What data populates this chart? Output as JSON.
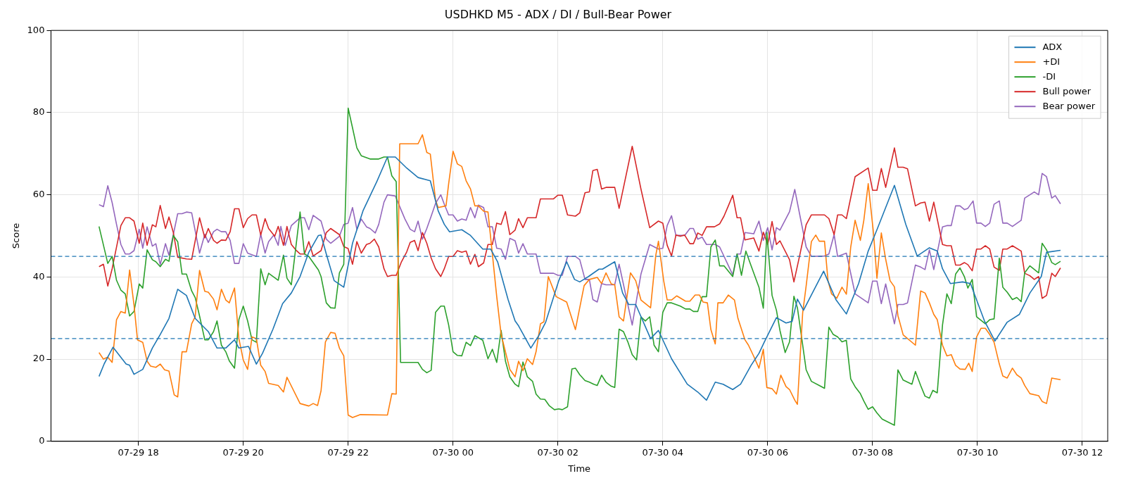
{
  "chart_data": {
    "type": "line",
    "title": "USDHKD M5 - ADX / DI / Bull-Bear Power",
    "xlabel": "Time",
    "ylabel": "Score",
    "xlim": [
      "--07-29T16:20",
      "--07-30T12:29"
    ],
    "ylim": [
      0,
      100
    ],
    "xticks": [
      {
        "value": "--07-29T18:00",
        "label": "07-29 18"
      },
      {
        "value": "--07-29T20:00",
        "label": "07-29 20"
      },
      {
        "value": "--07-29T22:00",
        "label": "07-29 22"
      },
      {
        "value": "--07-30T00:00",
        "label": "07-30 00"
      },
      {
        "value": "--07-30T02:00",
        "label": "07-30 02"
      },
      {
        "value": "--07-30T04:00",
        "label": "07-30 04"
      },
      {
        "value": "--07-30T06:00",
        "label": "07-30 06"
      },
      {
        "value": "--07-30T08:00",
        "label": "07-30 08"
      },
      {
        "value": "--07-30T10:00",
        "label": "07-30 10"
      },
      {
        "value": "--07-30T12:00",
        "label": "07-30 12"
      }
    ],
    "yticks": [
      0,
      20,
      40,
      60,
      80,
      100
    ],
    "grid": true,
    "legend": "top right",
    "ref_lines": [
      {
        "axis": "y",
        "value": 45,
        "color": "#1f77b4",
        "line_style": "dashed"
      },
      {
        "axis": "y",
        "value": 25,
        "color": "#1f77b4",
        "line_style": "dashed"
      }
    ],
    "series": [
      {
        "name": "ADX",
        "color": "#1f77b4",
        "x": [
          "--07-29T17:15",
          "--07-29T17:21",
          "--07-29T17:31",
          "--07-29T17:35",
          "--07-29T17:46",
          "--07-29T17:50",
          "--07-29T17:55",
          "--07-29T18:05",
          "--07-29T18:16",
          "--07-29T18:25",
          "--07-29T18:35",
          "--07-29T18:45",
          "--07-29T18:55",
          "--07-29T19:05",
          "--07-29T19:20",
          "--07-29T19:30",
          "--07-29T19:40",
          "--07-29T19:50",
          "--07-29T19:55",
          "--07-29T20:06",
          "--07-29T20:15",
          "--07-29T20:22",
          "--07-29T20:34",
          "--07-29T20:45",
          "--07-29T20:55",
          "--07-29T21:05",
          "--07-29T21:15",
          "--07-29T21:26",
          "--07-29T21:29",
          "--07-29T21:35",
          "--07-29T21:44",
          "--07-29T21:55",
          "--07-29T22:05",
          "--07-29T22:17",
          "--07-29T22:33",
          "--07-29T22:45",
          "--07-29T22:54",
          "--07-29T23:07",
          "--07-29T23:20",
          "--07-29T23:34",
          "--07-29T23:43",
          "--07-29T23:50",
          "--07-29T23:56",
          "--07-30T00:10",
          "--07-30T00:20",
          "--07-30T00:34",
          "--07-30T00:43",
          "--07-30T00:51",
          "--07-30T01:03",
          "--07-30T01:11",
          "--07-30T01:15",
          "--07-30T01:29",
          "--07-30T01:38",
          "--07-30T01:46",
          "--07-30T02:01",
          "--07-30T02:10",
          "--07-30T02:19",
          "--07-30T02:25",
          "--07-30T02:35",
          "--07-30T02:47",
          "--07-30T02:51",
          "--07-30T03:05",
          "--07-30T03:14",
          "--07-30T03:21",
          "--07-30T03:29",
          "--07-30T03:46",
          "--07-30T03:55",
          "--07-30T04:10",
          "--07-30T04:28",
          "--07-30T04:40",
          "--07-30T04:50",
          "--07-30T05:00",
          "--07-30T05:09",
          "--07-30T05:20",
          "--07-30T05:29",
          "--07-30T05:41",
          "--07-30T05:50",
          "--07-30T05:56",
          "--07-30T06:10",
          "--07-30T06:21",
          "--07-30T06:28",
          "--07-30T06:34",
          "--07-30T06:41",
          "--07-30T07:04",
          "--07-30T07:18",
          "--07-30T07:30",
          "--07-30T07:44",
          "--07-30T07:55",
          "--07-30T08:05",
          "--07-30T08:25",
          "--07-30T08:38",
          "--07-30T08:51",
          "--07-30T09:05",
          "--07-30T09:14",
          "--07-30T09:20",
          "--07-30T09:29",
          "--07-30T09:43",
          "--07-30T09:52",
          "--07-30T10:08",
          "--07-30T10:20",
          "--07-30T10:34",
          "--07-30T10:48",
          "--07-30T11:00",
          "--07-30T11:13",
          "--07-30T11:19",
          "--07-30T11:35"
        ],
        "values": [
          15.8,
          18.9,
          22.9,
          21.8,
          18.8,
          18.5,
          16.3,
          17.5,
          22.7,
          26,
          29.9,
          37,
          35.5,
          29.9,
          26.7,
          22.7,
          22.7,
          24.7,
          22.7,
          23.1,
          18.8,
          21.4,
          27.3,
          33.5,
          36.1,
          40.1,
          46,
          50.1,
          50.2,
          45.6,
          39.1,
          37.5,
          48.2,
          56.1,
          63.3,
          69.2,
          69.2,
          66.5,
          64.2,
          63.4,
          56.1,
          52.8,
          51,
          51.5,
          50.1,
          46.8,
          46.8,
          43.7,
          34.5,
          29.3,
          28.1,
          22.7,
          25.7,
          29,
          39.1,
          43.7,
          39.4,
          38.8,
          40.1,
          41.9,
          41.9,
          43.7,
          36.1,
          33.3,
          33.3,
          25,
          27,
          20.1,
          13.9,
          12,
          10,
          14.4,
          13.9,
          12.6,
          13.9,
          18.5,
          21.4,
          24.1,
          30.1,
          28.8,
          29.2,
          34.6,
          31.9,
          41.4,
          34.5,
          31,
          38.4,
          46.3,
          51.5,
          62.3,
          52.8,
          45.1,
          47.1,
          46.3,
          42,
          38.4,
          38.8,
          38.4,
          29.3,
          24.4,
          29,
          30.9,
          36.1,
          40.1,
          46,
          46.5
        ]
      },
      {
        "name": "+DI",
        "color": "#ff7f0e",
        "x": [
          "--07-29T17:15",
          "--07-29T17:20",
          "--07-29T17:25",
          "--07-29T17:30",
          "--07-29T17:35",
          "--07-29T17:40",
          "--07-29T17:45",
          "--07-29T17:50",
          "--07-29T17:55",
          "--07-29T17:59",
          "--07-29T18:05",
          "--07-29T18:10",
          "--07-29T18:14",
          "--07-29T18:20",
          "--07-29T18:25",
          "--07-29T18:30",
          "--07-29T18:35",
          "--07-29T18:41",
          "--07-29T18:45",
          "--07-29T18:50",
          "--07-29T18:55",
          "--07-29T19:01",
          "--07-29T19:05",
          "--07-29T19:10",
          "--07-29T19:16",
          "--07-29T19:20",
          "--07-29T19:26",
          "--07-29T19:30",
          "--07-29T19:35",
          "--07-29T19:40",
          "--07-29T19:44",
          "--07-29T19:50",
          "--07-29T19:55",
          "--07-29T20:00",
          "--07-29T20:05",
          "--07-29T20:10",
          "--07-29T20:15",
          "--07-29T20:20",
          "--07-29T20:25",
          "--07-29T20:29",
          "--07-29T20:40",
          "--07-29T20:46",
          "--07-29T20:50",
          "--07-29T21:05",
          "--07-29T21:15",
          "--07-29T21:20",
          "--07-29T21:25",
          "--07-29T21:29",
          "--07-29T21:34",
          "--07-29T21:40",
          "--07-29T21:45",
          "--07-29T21:50",
          "--07-29T21:55",
          "--07-29T22:00",
          "--07-29T22:05",
          "--07-29T22:14",
          "--07-29T22:45",
          "--07-29T22:50",
          "--07-29T22:55",
          "--07-29T22:59",
          "--07-29T23:20",
          "--07-29T23:25",
          "--07-29T23:30",
          "--07-29T23:34",
          "--07-29T23:40",
          "--07-29T23:43",
          "--07-29T23:52",
          "--07-29T23:55",
          "--07-30T00:00",
          "--07-30T00:05",
          "--07-30T00:10",
          "--07-30T00:15",
          "--07-30T00:20",
          "--07-30T00:25",
          "--07-30T00:29",
          "--07-30T00:35",
          "--07-30T00:40",
          "--07-30T00:45",
          "--07-30T00:50",
          "--07-30T00:55",
          "--07-30T01:05",
          "--07-30T01:11",
          "--07-30T01:15",
          "--07-30T01:20",
          "--07-30T01:25",
          "--07-30T01:31",
          "--07-30T01:35",
          "--07-30T01:40",
          "--07-30T01:44",
          "--07-30T01:49",
          "--07-30T01:58",
          "--07-30T02:10",
          "--07-30T02:20",
          "--07-30T02:30",
          "--07-30T02:36",
          "--07-30T02:45",
          "--07-30T02:50",
          "--07-30T02:55",
          "--07-30T03:01",
          "--07-30T03:05",
          "--07-30T03:10",
          "--07-30T03:15",
          "--07-30T03:23",
          "--07-30T03:29",
          "--07-30T03:35",
          "--07-30T03:46",
          "--07-30T03:52",
          "--07-30T03:55",
          "--07-30T04:01",
          "--07-30T04:05",
          "--07-30T04:10",
          "--07-30T04:16",
          "--07-30T04:26",
          "--07-30T04:31",
          "--07-30T04:37",
          "--07-30T04:42",
          "--07-30T04:46",
          "--07-30T04:51",
          "--07-30T04:55",
          "--07-30T05:00",
          "--07-30T05:03",
          "--07-30T05:09",
          "--07-30T05:15",
          "--07-30T05:22",
          "--07-30T05:26",
          "--07-30T05:34",
          "--07-30T05:38",
          "--07-30T05:44",
          "--07-30T05:50",
          "--07-30T05:55",
          "--07-30T05:59",
          "--07-30T06:05",
          "--07-30T06:10",
          "--07-30T06:15",
          "--07-30T06:21",
          "--07-30T06:25",
          "--07-30T06:31",
          "--07-30T06:34",
          "--07-30T06:40",
          "--07-30T06:44",
          "--07-30T06:50",
          "--07-30T06:55",
          "--07-30T06:59",
          "--07-30T07:05",
          "--07-30T07:09",
          "--07-30T07:13",
          "--07-30T07:19",
          "--07-30T07:25",
          "--07-30T07:30",
          "--07-30T07:35",
          "--07-30T07:40",
          "--07-30T07:46",
          "--07-30T07:50",
          "--07-30T07:55",
          "--07-30T08:01",
          "--07-30T08:05",
          "--07-30T08:10",
          "--07-30T08:15",
          "--07-30T08:20",
          "--07-30T08:25",
          "--07-30T08:29",
          "--07-30T08:35",
          "--07-30T08:49",
          "--07-30T08:55",
          "--07-30T09:00",
          "--07-30T09:05",
          "--07-30T09:10",
          "--07-30T09:14",
          "--07-30T09:20",
          "--07-30T09:25",
          "--07-30T09:30",
          "--07-30T09:35",
          "--07-30T09:40",
          "--07-30T09:46",
          "--07-30T09:50",
          "--07-30T09:54",
          "--07-30T09:59",
          "--07-30T10:04",
          "--07-30T10:09",
          "--07-30T10:14",
          "--07-30T10:19",
          "--07-30T10:25",
          "--07-30T10:29",
          "--07-30T10:34",
          "--07-30T10:40",
          "--07-30T10:45",
          "--07-30T10:50",
          "--07-30T10:54",
          "--07-30T11:00",
          "--07-30T11:10",
          "--07-30T11:14",
          "--07-30T11:19",
          "--07-30T11:25",
          "--07-30T11:35"
        ],
        "values": [
          21.6,
          20,
          20.5,
          19.2,
          29.6,
          31.6,
          31.2,
          41.7,
          33.2,
          24.7,
          24.1,
          19.5,
          18.3,
          18,
          18.8,
          17.4,
          17.1,
          11.3,
          10.8,
          21.8,
          21.8,
          28.6,
          30.3,
          41.6,
          36.5,
          36.3,
          34.6,
          32,
          37,
          34.4,
          33.7,
          37.3,
          25,
          19.8,
          17.5,
          25.4,
          25,
          18.5,
          17,
          14.1,
          13.6,
          12,
          15.6,
          9.2,
          8.6,
          9.2,
          8.7,
          12.3,
          24.2,
          26.5,
          26.3,
          22.7,
          20.8,
          6.4,
          5.8,
          6.5,
          6.4,
          11.6,
          11.5,
          72.4,
          72.4,
          74.6,
          70.3,
          69.9,
          58.7,
          56.9,
          57.3,
          62.7,
          70.6,
          67.5,
          66.9,
          63.4,
          61.4,
          57.3,
          57.3,
          56,
          55.8,
          45.6,
          35.2,
          26,
          17.5,
          15.7,
          19.5,
          17.2,
          20.1,
          18.7,
          21.8,
          28.6,
          29.1,
          40.1,
          35.2,
          33.9,
          27.2,
          37.9,
          39.4,
          39.9,
          38.4,
          41,
          38.3,
          38.1,
          30.3,
          29.3,
          41,
          39.1,
          34.4,
          32.5,
          45.3,
          48.7,
          39.1,
          34.4,
          34.4,
          35.4,
          34.1,
          34.1,
          35.6,
          35.6,
          33.9,
          33.7,
          27.2,
          23.7,
          33.7,
          33.7,
          35.6,
          34.4,
          29.9,
          24.7,
          23.4,
          20.7,
          17.8,
          22.4,
          13.1,
          12.8,
          11.5,
          16.1,
          13.3,
          12.6,
          10,
          9,
          31.2,
          37.8,
          48.6,
          50.2,
          48.7,
          48.7,
          39.1,
          35.9,
          34.8,
          37.5,
          35.8,
          47.3,
          53.8,
          48.9,
          53.8,
          62.7,
          50.8,
          39.7,
          50.7,
          44.3,
          39.1,
          37.6,
          30.6,
          25.9,
          23.4,
          36.6,
          36.1,
          33.7,
          30.9,
          29.6,
          23.4,
          20.8,
          21.1,
          18.5,
          17.6,
          17.5,
          19,
          17,
          25.4,
          27.5,
          27.5,
          26,
          24.1,
          18.8,
          15.9,
          15.4,
          17.8,
          16.2,
          15.4,
          13.6,
          11.6,
          11.1,
          9.7,
          9.2,
          15.4,
          15
        ]
      },
      {
        "name": "-DI",
        "color": "#2ca02c",
        "x": [
          "--07-29T17:15",
          "--07-29T17:25",
          "--07-29T17:30",
          "--07-29T17:35",
          "--07-29T17:40",
          "--07-29T17:45",
          "--07-29T17:50",
          "--07-29T17:55",
          "--07-29T18:01",
          "--07-29T18:05",
          "--07-29T18:10",
          "--07-29T18:16",
          "--07-29T18:20",
          "--07-29T18:25",
          "--07-29T18:31",
          "--07-29T18:35",
          "--07-29T18:40",
          "--07-29T18:45",
          "--07-29T18:50",
          "--07-29T18:55",
          "--07-29T19:01",
          "--07-29T19:05",
          "--07-29T19:10",
          "--07-29T19:16",
          "--07-29T19:20",
          "--07-29T19:26",
          "--07-29T19:30",
          "--07-29T19:35",
          "--07-29T19:40",
          "--07-29T19:44",
          "--07-29T19:50",
          "--07-29T19:55",
          "--07-29T20:00",
          "--07-29T20:05",
          "--07-29T20:10",
          "--07-29T20:15",
          "--07-29T20:20",
          "--07-29T20:25",
          "--07-29T20:29",
          "--07-29T20:40",
          "--07-29T20:46",
          "--07-29T20:50",
          "--07-29T20:55",
          "--07-29T21:05",
          "--07-29T21:10",
          "--07-29T21:15",
          "--07-29T21:26",
          "--07-29T21:29",
          "--07-29T21:35",
          "--07-29T21:40",
          "--07-29T21:45",
          "--07-29T21:50",
          "--07-29T21:55",
          "--07-29T22:00",
          "--07-29T22:05",
          "--07-29T22:10",
          "--07-29T22:15",
          "--07-29T22:25",
          "--07-29T22:35",
          "--07-29T22:41",
          "--07-29T22:45",
          "--07-29T22:50",
          "--07-29T22:55",
          "--07-29T23:00",
          "--07-29T23:20",
          "--07-29T23:25",
          "--07-29T23:30",
          "--07-29T23:35",
          "--07-29T23:40",
          "--07-29T23:46",
          "--07-29T23:50",
          "--07-29T23:55",
          "--07-30T00:00",
          "--07-30T00:05",
          "--07-30T00:10",
          "--07-30T00:15",
          "--07-30T00:20",
          "--07-30T00:25",
          "--07-30T00:34",
          "--07-30T00:40",
          "--07-30T00:45",
          "--07-30T00:50",
          "--07-30T00:55",
          "--07-30T01:00",
          "--07-30T01:05",
          "--07-30T01:11",
          "--07-30T01:15",
          "--07-30T01:20",
          "--07-30T01:25",
          "--07-30T01:31",
          "--07-30T01:35",
          "--07-30T01:40",
          "--07-30T01:45",
          "--07-30T01:50",
          "--07-30T01:56",
          "--07-30T02:01",
          "--07-30T02:05",
          "--07-30T02:11",
          "--07-30T02:16",
          "--07-30T02:20",
          "--07-30T02:25",
          "--07-30T02:31",
          "--07-30T02:36",
          "--07-30T02:41",
          "--07-30T02:45",
          "--07-30T02:50",
          "--07-30T02:55",
          "--07-30T03:01",
          "--07-30T03:05",
          "--07-30T03:10",
          "--07-30T03:15",
          "--07-30T03:20",
          "--07-30T03:25",
          "--07-30T03:30",
          "--07-30T03:35",
          "--07-30T03:40",
          "--07-30T03:45",
          "--07-30T03:50",
          "--07-30T03:55",
          "--07-30T04:00",
          "--07-30T04:05",
          "--07-30T04:10",
          "--07-30T04:20",
          "--07-30T04:26",
          "--07-30T04:31",
          "--07-30T04:35",
          "--07-30T04:40",
          "--07-30T04:45",
          "--07-30T04:50",
          "--07-30T04:55",
          "--07-30T05:00",
          "--07-30T05:05",
          "--07-30T05:10",
          "--07-30T05:20",
          "--07-30T05:25",
          "--07-30T05:30",
          "--07-30T05:35",
          "--07-30T05:40",
          "--07-30T05:50",
          "--07-30T05:55",
          "--07-30T05:59",
          "--07-30T06:05",
          "--07-30T06:10",
          "--07-30T06:14",
          "--07-30T06:20",
          "--07-30T06:25",
          "--07-30T06:30",
          "--07-30T06:34",
          "--07-30T06:39",
          "--07-30T06:44",
          "--07-30T06:50",
          "--07-30T06:59",
          "--07-30T07:05",
          "--07-30T07:10",
          "--07-30T07:15",
          "--07-30T07:20",
          "--07-30T07:25",
          "--07-30T07:30",
          "--07-30T07:35",
          "--07-30T07:40",
          "--07-30T07:46",
          "--07-30T07:50",
          "--07-30T07:55",
          "--07-30T08:00",
          "--07-30T08:05",
          "--07-30T08:11",
          "--07-30T08:25",
          "--07-30T08:29",
          "--07-30T08:35",
          "--07-30T08:45",
          "--07-30T08:49",
          "--07-30T08:55",
          "--07-30T09:00",
          "--07-30T09:05",
          "--07-30T09:09",
          "--07-30T09:14",
          "--07-30T09:20",
          "--07-30T09:25",
          "--07-30T09:30",
          "--07-30T09:35",
          "--07-30T09:40",
          "--07-30T09:45",
          "--07-30T09:49",
          "--07-30T09:54",
          "--07-30T09:59",
          "--07-30T10:09",
          "--07-30T10:14",
          "--07-30T10:19",
          "--07-30T10:25",
          "--07-30T10:29",
          "--07-30T10:34",
          "--07-30T10:40",
          "--07-30T10:45",
          "--07-30T10:50",
          "--07-30T10:54",
          "--07-30T11:00",
          "--07-30T11:10",
          "--07-30T11:14",
          "--07-30T11:19",
          "--07-30T11:25",
          "--07-30T11:29",
          "--07-30T11:35"
        ],
        "values": [
          52.3,
          43.3,
          45,
          39.2,
          36.8,
          35.9,
          30.5,
          31.6,
          38.3,
          37.3,
          46.6,
          44.2,
          43.7,
          42.5,
          44.3,
          43.8,
          50.1,
          48.6,
          40.7,
          40.7,
          36.6,
          35,
          30.5,
          24.7,
          24.7,
          26.7,
          29.3,
          23.4,
          21.8,
          19.6,
          17.8,
          29.6,
          32.9,
          29.3,
          24.7,
          24.1,
          42,
          38.1,
          40.9,
          39.2,
          45.3,
          39.7,
          38.1,
          55.8,
          45.6,
          45,
          41.7,
          40.1,
          33.7,
          32.5,
          32.4,
          41,
          43.1,
          81.1,
          76.3,
          71.4,
          69.5,
          68.7,
          68.7,
          69.2,
          69.2,
          64.6,
          63.2,
          19.2,
          19.2,
          17.5,
          16.7,
          17.3,
          31.4,
          32.9,
          32.9,
          28.3,
          21.8,
          20.9,
          20.8,
          24.1,
          23.3,
          25.7,
          24.6,
          20.1,
          22.4,
          19.2,
          27,
          19.5,
          15.7,
          13.9,
          13.3,
          19.3,
          15.7,
          14.6,
          11.5,
          10.3,
          10.2,
          8.7,
          7.7,
          7.9,
          7.7,
          8.4,
          17.6,
          17.8,
          16.2,
          14.8,
          14.4,
          13.9,
          13.6,
          16.1,
          14.4,
          13.4,
          13.1,
          27.3,
          26.7,
          24.2,
          21.1,
          19.8,
          30.3,
          29.3,
          30.3,
          23.4,
          21.8,
          31.4,
          33.7,
          33.7,
          32.9,
          32.2,
          32.2,
          31.6,
          31.6,
          35.2,
          35.2,
          47.3,
          49,
          42.7,
          42.7,
          40.1,
          45.6,
          40.4,
          46.3,
          43.3,
          37.5,
          32.4,
          50.8,
          35.5,
          31.9,
          27,
          21.6,
          24.2,
          35.3,
          32.5,
          25,
          17.4,
          14.6,
          13.6,
          12.9,
          27.8,
          26,
          25.4,
          24.2,
          24.6,
          15.2,
          13.3,
          11.6,
          9.8,
          7.8,
          8.4,
          6.9,
          5.4,
          3.9,
          17.4,
          14.9,
          13.9,
          17,
          13.6,
          11,
          10.5,
          12.4,
          11.8,
          28.3,
          35.9,
          33.5,
          40.7,
          42.2,
          40.1,
          37.3,
          39.4,
          30.3,
          28.6,
          29.6,
          29.8,
          44.6,
          37.5,
          36.3,
          34.5,
          35,
          34,
          41,
          42.7,
          41,
          48.2,
          46.6,
          43.5,
          43,
          43.8
        ]
      },
      {
        "name": "Bull power",
        "color": "#d62728",
        "x": [
          "--07-29T17:15",
          "--07-29T17:20",
          "--07-29T17:25",
          "--07-29T17:30",
          "--07-29T17:40",
          "--07-29T17:45",
          "--07-29T17:50",
          "--07-29T17:55",
          "--07-29T18:01",
          "--07-29T18:05",
          "--07-29T18:10",
          "--07-29T18:16",
          "--07-29T18:20",
          "--07-29T18:25",
          "--07-29T18:31",
          "--07-29T18:35",
          "--07-29T18:40",
          "--07-29T18:45",
          "--07-29T18:55",
          "--07-29T19:01",
          "--07-29T19:10",
          "--07-29T19:16",
          "--07-29T19:20",
          "--07-29T19:26",
          "--07-29T19:30",
          "--07-29T19:35",
          "--07-29T19:40",
          "--07-29T19:45",
          "--07-29T19:50",
          "--07-29T19:55",
          "--07-29T20:00",
          "--07-29T20:05",
          "--07-29T20:10",
          "--07-29T20:15",
          "--07-29T20:20",
          "--07-29T20:25",
          "--07-29T20:29",
          "--07-29T20:36",
          "--07-29T20:40",
          "--07-29T20:46",
          "--07-29T20:50",
          "--07-29T20:55",
          "--07-29T21:00",
          "--07-29T21:05",
          "--07-29T21:10",
          "--07-29T21:15",
          "--07-29T21:20",
          "--07-29T21:29",
          "--07-29T21:35",
          "--07-29T21:40",
          "--07-29T21:50",
          "--07-29T21:55",
          "--07-29T22:00",
          "--07-29T22:05",
          "--07-29T22:10",
          "--07-29T22:15",
          "--07-29T22:21",
          "--07-29T22:25",
          "--07-29T22:30",
          "--07-29T22:35",
          "--07-29T22:41",
          "--07-29T22:45",
          "--07-29T22:50",
          "--07-29T22:55",
          "--07-29T23:01",
          "--07-29T23:07",
          "--07-29T23:11",
          "--07-29T23:16",
          "--07-29T23:20",
          "--07-29T23:25",
          "--07-29T23:30",
          "--07-29T23:35",
          "--07-29T23:40",
          "--07-29T23:46",
          "--07-29T23:50",
          "--07-29T23:55",
          "--07-30T00:00",
          "--07-30T00:05",
          "--07-30T00:10",
          "--07-30T00:15",
          "--07-30T00:20",
          "--07-30T00:25",
          "--07-30T00:29",
          "--07-30T00:35",
          "--07-30T00:40",
          "--07-30T00:45",
          "--07-30T00:50",
          "--07-30T00:55",
          "--07-30T01:00",
          "--07-30T01:05",
          "--07-30T01:11",
          "--07-30T01:15",
          "--07-30T01:20",
          "--07-30T01:25",
          "--07-30T01:35",
          "--07-30T01:40",
          "--07-30T01:55",
          "--07-30T02:00",
          "--07-30T02:05",
          "--07-30T02:11",
          "--07-30T02:20",
          "--07-30T02:25",
          "--07-30T02:31",
          "--07-30T02:36",
          "--07-30T02:40",
          "--07-30T02:45",
          "--07-30T02:50",
          "--07-30T02:55",
          "--07-30T03:05",
          "--07-30T03:10",
          "--07-30T03:25",
          "--07-30T03:35",
          "--07-30T03:45",
          "--07-30T03:55",
          "--07-30T04:00",
          "--07-30T04:05",
          "--07-30T04:10",
          "--07-30T04:15",
          "--07-30T04:20",
          "--07-30T04:25",
          "--07-30T04:31",
          "--07-30T04:35",
          "--07-30T04:40",
          "--07-30T04:45",
          "--07-30T04:50",
          "--07-30T04:59",
          "--07-30T05:05",
          "--07-30T05:10",
          "--07-30T05:15",
          "--07-30T05:20",
          "--07-30T05:25",
          "--07-30T05:29",
          "--07-30T05:34",
          "--07-30T05:44",
          "--07-30T05:50",
          "--07-30T05:55",
          "--07-30T06:00",
          "--07-30T06:05",
          "--07-30T06:10",
          "--07-30T06:14",
          "--07-30T06:25",
          "--07-30T06:30",
          "--07-30T06:37",
          "--07-30T06:44",
          "--07-30T06:50",
          "--07-30T07:05",
          "--07-30T07:10",
          "--07-30T07:16",
          "--07-30T07:20",
          "--07-30T07:25",
          "--07-30T07:30",
          "--07-30T07:40",
          "--07-30T07:55",
          "--07-30T08:00",
          "--07-30T08:05",
          "--07-30T08:10",
          "--07-30T08:15",
          "--07-30T08:25",
          "--07-30T08:29",
          "--07-30T08:35",
          "--07-30T08:40",
          "--07-30T08:49",
          "--07-30T08:55",
          "--07-30T09:00",
          "--07-30T09:05",
          "--07-30T09:10",
          "--07-30T09:20",
          "--07-30T09:25",
          "--07-30T09:30",
          "--07-30T09:35",
          "--07-30T09:40",
          "--07-30T09:45",
          "--07-30T09:49",
          "--07-30T09:54",
          "--07-30T09:59",
          "--07-30T10:04",
          "--07-30T10:09",
          "--07-30T10:14",
          "--07-30T10:19",
          "--07-30T10:25",
          "--07-30T10:29",
          "--07-30T10:34",
          "--07-30T10:40",
          "--07-30T10:50",
          "--07-30T10:54",
          "--07-30T11:00",
          "--07-30T11:05",
          "--07-30T11:10",
          "--07-30T11:14",
          "--07-30T11:19",
          "--07-30T11:25",
          "--07-30T11:29",
          "--07-30T11:35"
        ],
        "values": [
          42.5,
          43.1,
          37.8,
          42,
          52.5,
          54.4,
          54.4,
          53.6,
          48.2,
          53.1,
          47.7,
          52.7,
          52.2,
          57.4,
          51.8,
          54.6,
          50.8,
          44.8,
          44.4,
          44.3,
          54.4,
          49.5,
          51.8,
          48.9,
          48.2,
          49,
          48.9,
          51,
          56.6,
          56.6,
          52,
          54.2,
          55.1,
          55.1,
          50.2,
          54.2,
          51.8,
          49.9,
          52.3,
          47.7,
          52.3,
          47.9,
          46.6,
          45.6,
          45.6,
          48.6,
          45.1,
          46.4,
          50.8,
          51.8,
          50.3,
          47.4,
          46.9,
          43.1,
          48.6,
          45.8,
          47.9,
          48.2,
          49.2,
          47.3,
          42,
          40.1,
          40.4,
          40.4,
          43.7,
          46.1,
          48.4,
          48.9,
          46.4,
          50.8,
          48.2,
          44.6,
          42,
          40.1,
          42,
          45,
          45,
          46.4,
          46,
          46.3,
          43.1,
          45.5,
          42.5,
          43.4,
          47.9,
          47.9,
          53.1,
          52.8,
          55.9,
          50.3,
          51.4,
          54.2,
          52,
          54.4,
          54.4,
          59,
          59,
          59.9,
          59.9,
          55.1,
          54.8,
          55.6,
          60.5,
          60.7,
          65.9,
          66.2,
          61.4,
          61.8,
          61.8,
          56.7,
          71.8,
          61.4,
          52,
          53.6,
          53.1,
          47.7,
          45.1,
          50.2,
          49.9,
          50.2,
          48.1,
          48.1,
          50.7,
          50.1,
          52.2,
          52.2,
          52.9,
          54.8,
          57.3,
          59.9,
          54.4,
          54.4,
          49,
          49.5,
          46.3,
          50.9,
          47.9,
          53.5,
          47.9,
          48.8,
          44.2,
          38.8,
          45.6,
          52.7,
          55.1,
          55.1,
          54.2,
          50.3,
          55.1,
          55.1,
          54.2,
          64.4,
          66.5,
          61.1,
          61.1,
          66.4,
          61.8,
          71.4,
          66.7,
          66.7,
          66.3,
          57.3,
          58,
          58.2,
          53.6,
          58.2,
          47.9,
          47.6,
          47.6,
          42.9,
          42.9,
          43.5,
          43,
          41.5,
          46.8,
          46.8,
          47.6,
          46.8,
          42.4,
          41.6,
          46.8,
          46.8,
          47.6,
          46.3,
          40.9,
          40.3,
          39.4,
          40.1,
          34.8,
          35.5,
          40.9,
          40.1,
          42.2
        ]
      },
      {
        "name": "Bear power",
        "color": "#9467bd",
        "x": [
          "--07-29T17:15",
          "--07-29T17:20",
          "--07-29T17:25",
          "--07-29T17:30",
          "--07-29T17:35",
          "--07-29T17:40",
          "--07-29T17:45",
          "--07-29T17:50",
          "--07-29T17:55",
          "--07-29T18:01",
          "--07-29T18:05",
          "--07-29T18:10",
          "--07-29T18:16",
          "--07-29T18:20",
          "--07-29T18:25",
          "--07-29T18:31",
          "--07-29T18:35",
          "--07-29T18:45",
          "--07-29T18:50",
          "--07-29T18:55",
          "--07-29T19:01",
          "--07-29T19:10",
          "--07-29T19:16",
          "--07-29T19:20",
          "--07-29T19:26",
          "--07-29T19:30",
          "--07-29T19:35",
          "--07-29T19:40",
          "--07-29T19:45",
          "--07-29T19:50",
          "--07-29T19:55",
          "--07-29T20:00",
          "--07-29T20:05",
          "--07-29T20:15",
          "--07-29T20:20",
          "--07-29T20:25",
          "--07-29T20:29",
          "--07-29T20:35",
          "--07-29T20:40",
          "--07-29T20:43",
          "--07-29T20:48",
          "--07-29T20:55",
          "--07-29T21:05",
          "--07-29T21:10",
          "--07-29T21:15",
          "--07-29T21:20",
          "--07-29T21:29",
          "--07-29T21:35",
          "--07-29T21:40",
          "--07-29T21:50",
          "--07-29T21:55",
          "--07-29T22:00",
          "--07-29T22:05",
          "--07-29T22:10",
          "--07-29T22:15",
          "--07-29T22:21",
          "--07-29T22:25",
          "--07-29T22:31",
          "--07-29T22:35",
          "--07-29T22:41",
          "--07-29T22:45",
          "--07-29T22:54",
          "--07-29T23:01",
          "--07-29T23:05",
          "--07-29T23:11",
          "--07-29T23:16",
          "--07-29T23:20",
          "--07-29T23:25",
          "--07-29T23:30",
          "--07-29T23:35",
          "--07-29T23:40",
          "--07-29T23:46",
          "--07-29T23:50",
          "--07-29T23:55",
          "--07-30T00:00",
          "--07-30T00:05",
          "--07-30T00:10",
          "--07-30T00:15",
          "--07-30T00:20",
          "--07-30T00:25",
          "--07-30T00:29",
          "--07-30T00:35",
          "--07-30T00:40",
          "--07-30T00:45",
          "--07-30T00:50",
          "--07-30T00:55",
          "--07-30T01:00",
          "--07-30T01:05",
          "--07-30T01:11",
          "--07-30T01:15",
          "--07-30T01:20",
          "--07-30T01:25",
          "--07-30T01:35",
          "--07-30T01:40",
          "--07-30T01:55",
          "--07-30T02:00",
          "--07-30T02:05",
          "--07-30T02:11",
          "--07-30T02:20",
          "--07-30T02:25",
          "--07-30T02:31",
          "--07-30T02:36",
          "--07-30T02:40",
          "--07-30T02:45",
          "--07-30T02:50",
          "--07-30T02:55",
          "--07-30T03:05",
          "--07-30T03:10",
          "--07-30T03:25",
          "--07-30T03:35",
          "--07-30T03:45",
          "--07-30T03:55",
          "--07-30T04:00",
          "--07-30T04:05",
          "--07-30T04:10",
          "--07-30T04:15",
          "--07-30T04:25",
          "--07-30T04:31",
          "--07-30T04:35",
          "--07-30T04:40",
          "--07-30T04:45",
          "--07-30T04:50",
          "--07-30T05:00",
          "--07-30T05:05",
          "--07-30T05:20",
          "--07-30T05:25",
          "--07-30T05:29",
          "--07-30T05:34",
          "--07-30T05:44",
          "--07-30T05:50",
          "--07-30T05:55",
          "--07-30T06:00",
          "--07-30T06:05",
          "--07-30T06:10",
          "--07-30T06:14",
          "--07-30T06:25",
          "--07-30T06:31",
          "--07-30T06:37",
          "--07-30T06:44",
          "--07-30T06:50",
          "--07-30T07:05",
          "--07-30T07:10",
          "--07-30T07:16",
          "--07-30T07:20",
          "--07-30T07:30",
          "--07-30T07:40",
          "--07-30T07:55",
          "--07-30T08:00",
          "--07-30T08:05",
          "--07-30T08:10",
          "--07-30T08:15",
          "--07-30T08:25",
          "--07-30T08:29",
          "--07-30T08:35",
          "--07-30T08:40",
          "--07-30T08:49",
          "--07-30T08:55",
          "--07-30T09:00",
          "--07-30T09:05",
          "--07-30T09:10",
          "--07-30T09:20",
          "--07-30T09:25",
          "--07-30T09:30",
          "--07-30T09:35",
          "--07-30T09:40",
          "--07-30T09:45",
          "--07-30T09:49",
          "--07-30T09:55",
          "--07-30T09:59",
          "--07-30T10:04",
          "--07-30T10:09",
          "--07-30T10:14",
          "--07-30T10:19",
          "--07-30T10:25",
          "--07-30T10:29",
          "--07-30T10:34",
          "--07-30T10:40",
          "--07-30T10:50",
          "--07-30T10:54",
          "--07-30T11:00",
          "--07-30T11:05",
          "--07-30T11:10",
          "--07-30T11:14",
          "--07-30T11:19",
          "--07-30T11:25",
          "--07-30T11:29",
          "--07-30T11:35"
        ],
        "values": [
          57.6,
          57.1,
          62.2,
          58.1,
          52.8,
          47.9,
          45.6,
          45.6,
          46.4,
          51.6,
          47,
          52.2,
          47.5,
          48.1,
          43,
          48.1,
          45.3,
          55.4,
          55.4,
          55.8,
          55.6,
          45.8,
          50.4,
          48.4,
          51,
          51.6,
          51,
          51,
          48.9,
          43.3,
          43.3,
          48.1,
          45.8,
          45,
          50.4,
          45.8,
          48.6,
          50.2,
          47.7,
          52.3,
          47.7,
          52.5,
          54.4,
          54.4,
          51.5,
          55,
          53.6,
          49.2,
          48.2,
          49.9,
          52.8,
          53.1,
          56.9,
          51.6,
          54.1,
          52.2,
          51.8,
          50.7,
          52.8,
          58.2,
          60,
          59.7,
          56.1,
          54.1,
          51.6,
          51,
          53.6,
          49.2,
          51.8,
          54.8,
          57.9,
          60,
          57.7,
          55.1,
          55.1,
          53.6,
          54.1,
          53.8,
          56.9,
          54.4,
          57.5,
          56.9,
          52.2,
          52.2,
          47,
          46.8,
          44.3,
          49.4,
          48.8,
          45.8,
          48.1,
          45.6,
          45.6,
          40.9,
          40.9,
          40.4,
          40.4,
          45,
          45,
          44.2,
          39.4,
          39.4,
          34.5,
          33.9,
          38.4,
          38.1,
          38.1,
          43.1,
          28.3,
          40.7,
          47.9,
          46.8,
          47,
          52.5,
          54.9,
          50.1,
          50.1,
          51.8,
          51.8,
          49.2,
          49.7,
          47.9,
          47.9,
          47.3,
          40.5,
          45.6,
          45.6,
          50.8,
          50.5,
          53.6,
          48.9,
          52,
          46.6,
          52,
          51.4,
          55.9,
          61.3,
          54.8,
          47.3,
          45,
          45.1,
          45.6,
          50.3,
          45,
          45.8,
          35.9,
          33.7,
          39,
          39,
          33.5,
          38.3,
          28.6,
          33.3,
          33.3,
          33.7,
          42.9,
          42.4,
          41.8,
          46.6,
          41.8,
          52.2,
          52.5,
          52.5,
          57.3,
          57.3,
          56.4,
          56.7,
          58.5,
          53.1,
          53.1,
          52.3,
          53.1,
          57.7,
          58.5,
          53.1,
          53.1,
          52.3,
          53.8,
          59.2,
          60,
          60.7,
          60,
          65.2,
          64.4,
          59.2,
          59.8,
          57.8
        ]
      }
    ]
  }
}
